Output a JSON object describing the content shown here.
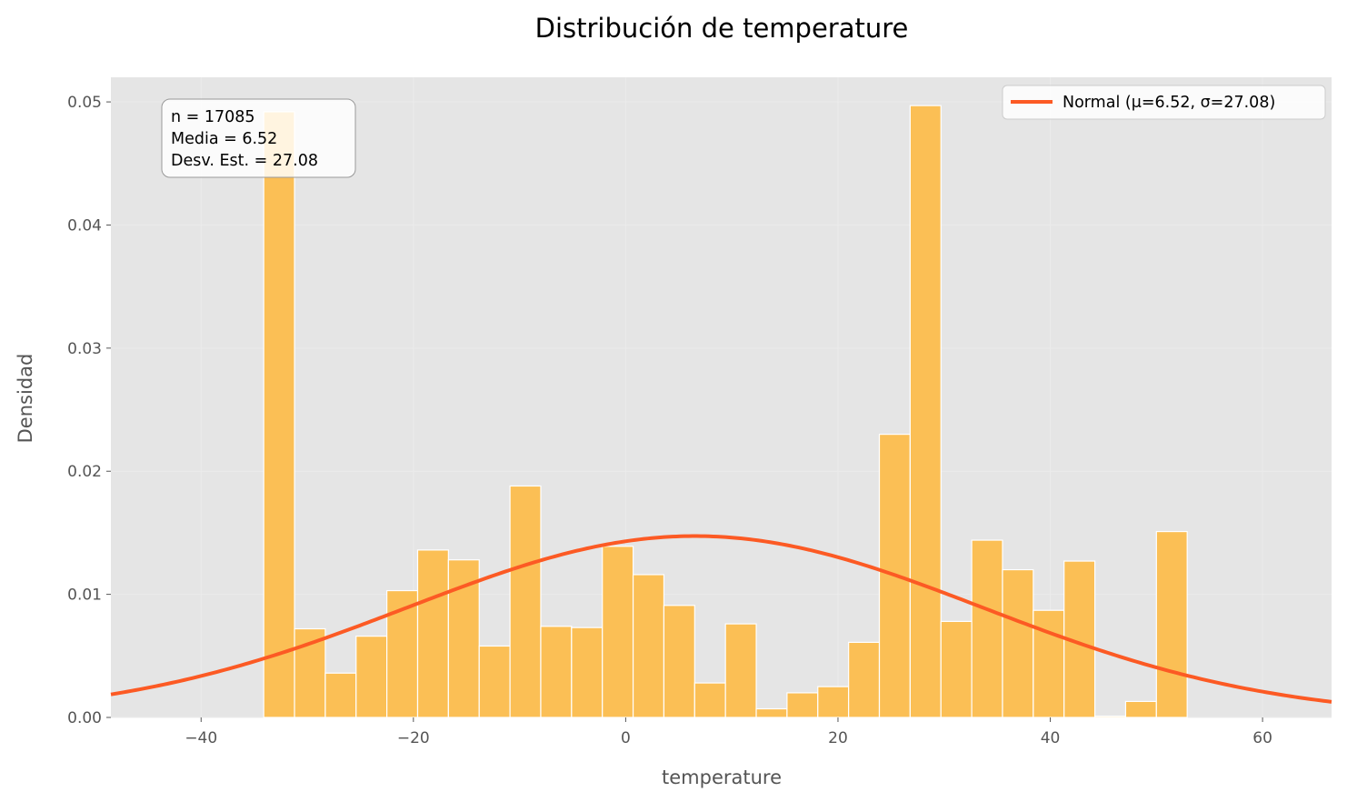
{
  "chart_data": {
    "type": "bar",
    "title": "Distribución de temperature",
    "xlabel": "temperature",
    "ylabel": "Densidad",
    "xlim": [
      -48.5,
      66.5
    ],
    "ylim": [
      0,
      0.052
    ],
    "xticks": [
      -40,
      -20,
      0,
      20,
      40,
      60
    ],
    "xtick_labels": [
      "−40",
      "−20",
      "0",
      "20",
      "40",
      "60"
    ],
    "yticks": [
      0,
      0.01,
      0.02,
      0.03,
      0.04,
      0.05
    ],
    "ytick_labels": [
      "0.00",
      "0.01",
      "0.02",
      "0.03",
      "0.04",
      "0.05"
    ],
    "grid": true,
    "bin_edges": [
      -34.1,
      -31.2,
      -28.3,
      -25.4,
      -22.5,
      -19.6,
      -16.7,
      -13.8,
      -10.9,
      -8.0,
      -5.1,
      -2.2,
      0.7,
      3.6,
      6.5,
      9.4,
      12.3,
      15.2,
      18.1,
      21.0,
      23.9,
      26.8,
      29.7,
      32.6,
      35.5,
      38.4,
      41.3,
      44.2,
      47.1,
      50.0,
      52.9
    ],
    "densities": [
      0.0492,
      0.0072,
      0.0036,
      0.0066,
      0.0103,
      0.0136,
      0.0128,
      0.0058,
      0.0188,
      0.0074,
      0.0073,
      0.0139,
      0.0116,
      0.0091,
      0.0028,
      0.0076,
      0.0007,
      0.002,
      0.0025,
      0.0061,
      0.023,
      0.0497,
      0.0078,
      0.0144,
      0.012,
      0.0087,
      0.0127,
      0.0001,
      0.0013,
      0.0151
    ],
    "bar_color": "#fbbf55",
    "series": [
      {
        "name": "Normal (μ=6.52, σ=27.08)",
        "type": "normal_pdf",
        "mu": 6.52,
        "sigma": 27.08,
        "color": "#fc5a24"
      }
    ],
    "legend_position": "top-right",
    "annotation": {
      "lines": [
        "n = 17085",
        "Media = 6.52",
        "Desv. Est. = 27.08"
      ],
      "position": "top-left"
    }
  }
}
